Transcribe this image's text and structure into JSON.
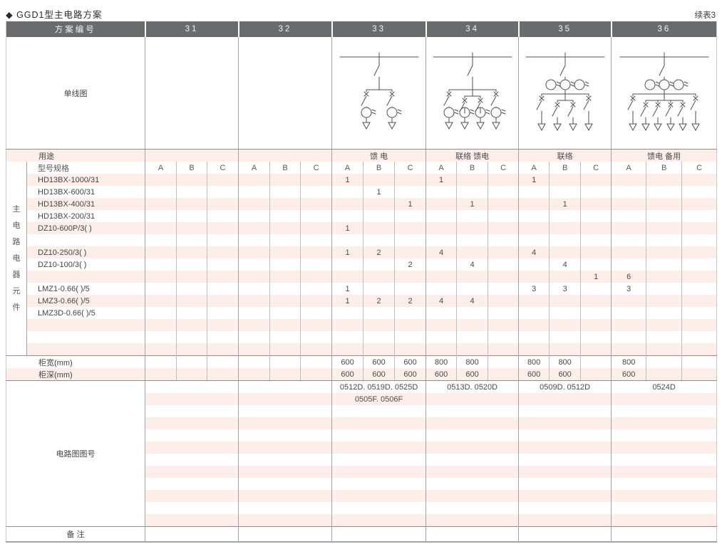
{
  "page": {
    "title": "◆ GGD1型主电路方案",
    "continued_label": "续表3"
  },
  "table": {
    "header": {
      "label": "方案编号",
      "schemes": [
        "31",
        "32",
        "33",
        "34",
        "35",
        "36"
      ]
    },
    "diagram_row": {
      "label": "单线图"
    },
    "usage_row": {
      "label": "用途",
      "values": [
        "",
        "",
        "馈 电",
        "联络 馈电",
        "联络",
        "馈电 备用"
      ]
    },
    "spec_row": {
      "label": "型号规格",
      "side_label": "主电路电器元件",
      "subcols": [
        "A",
        "B",
        "C"
      ]
    },
    "components": [
      {
        "name": "HD13BX-1000/31",
        "values": [
          "",
          "",
          "",
          "",
          "",
          "",
          "1",
          "",
          "",
          "1",
          "",
          "",
          "1",
          "",
          "",
          "",
          "",
          ""
        ]
      },
      {
        "name": "HD13BX-600/31",
        "values": [
          "",
          "",
          "",
          "",
          "",
          "",
          "",
          "1",
          "",
          "",
          "",
          "",
          "",
          "",
          "",
          "",
          "",
          ""
        ]
      },
      {
        "name": "HD13BX-400/31",
        "values": [
          "",
          "",
          "",
          "",
          "",
          "",
          "",
          "",
          "1",
          "",
          "1",
          "",
          "",
          "1",
          "",
          "",
          "",
          ""
        ]
      },
      {
        "name": "HD13BX-200/31",
        "values": [
          "",
          "",
          "",
          "",
          "",
          "",
          "",
          "",
          "",
          "",
          "",
          "",
          "",
          "",
          "",
          "",
          "",
          ""
        ]
      },
      {
        "name": "DZ10-600P/3( )",
        "values": [
          "",
          "",
          "",
          "",
          "",
          "",
          "1",
          "",
          "",
          "",
          "",
          "",
          "",
          "",
          "",
          "",
          "",
          ""
        ]
      },
      {
        "name": "",
        "values": [
          "",
          "",
          "",
          "",
          "",
          "",
          "",
          "",
          "",
          "",
          "",
          "",
          "",
          "",
          "",
          "",
          "",
          ""
        ]
      },
      {
        "name": "DZ10-250/3( )",
        "values": [
          "",
          "",
          "",
          "",
          "",
          "",
          "1",
          "2",
          "",
          "4",
          "",
          "",
          "4",
          "",
          "",
          "",
          "",
          ""
        ]
      },
      {
        "name": "DZ10-100/3( )",
        "values": [
          "",
          "",
          "",
          "",
          "",
          "",
          "",
          "",
          "2",
          "",
          "4",
          "",
          "",
          "4",
          "",
          "",
          "",
          ""
        ]
      },
      {
        "name": "",
        "values": [
          "",
          "",
          "",
          "",
          "",
          "",
          "",
          "",
          "",
          "",
          "",
          "",
          "",
          "",
          "1",
          "6",
          "",
          ""
        ]
      },
      {
        "name": "LMZ1-0.66( )/5",
        "values": [
          "",
          "",
          "",
          "",
          "",
          "",
          "1",
          "",
          "",
          "",
          "",
          "",
          "3",
          "3",
          "",
          "3",
          "",
          ""
        ]
      },
      {
        "name": "LMZ3-0.66( )/5",
        "values": [
          "",
          "",
          "",
          "",
          "",
          "",
          "1",
          "2",
          "2",
          "4",
          "4",
          "",
          "",
          "",
          "",
          "",
          "",
          ""
        ]
      },
      {
        "name": "LMZ3D-0.66( )/5",
        "values": [
          "",
          "",
          "",
          "",
          "",
          "",
          "",
          "",
          "",
          "",
          "",
          "",
          "",
          "",
          "",
          "",
          "",
          ""
        ]
      },
      {
        "name": "",
        "values": [
          "",
          "",
          "",
          "",
          "",
          "",
          "",
          "",
          "",
          "",
          "",
          "",
          "",
          "",
          "",
          "",
          "",
          ""
        ]
      },
      {
        "name": "",
        "values": [
          "",
          "",
          "",
          "",
          "",
          "",
          "",
          "",
          "",
          "",
          "",
          "",
          "",
          "",
          "",
          "",
          "",
          ""
        ]
      },
      {
        "name": "",
        "values": [
          "",
          "",
          "",
          "",
          "",
          "",
          "",
          "",
          "",
          "",
          "",
          "",
          "",
          "",
          "",
          "",
          "",
          ""
        ]
      }
    ],
    "width_row": {
      "label": "柜宽(mm)",
      "values": [
        "",
        "",
        "",
        "",
        "",
        "",
        "600",
        "600",
        "600",
        "800",
        "800",
        "",
        "800",
        "800",
        "",
        "800",
        "",
        ""
      ]
    },
    "depth_row": {
      "label": "柜深(mm)",
      "values": [
        "",
        "",
        "",
        "",
        "",
        "",
        "600",
        "600",
        "600",
        "600",
        "600",
        "",
        "600",
        "600",
        "",
        "600",
        "",
        ""
      ]
    },
    "drawing_section": {
      "label": "电路图图号",
      "rows": [
        [
          "",
          "",
          "0512D. 0519D. 0525D",
          "0513D. 0520D",
          "0509D. 0512D",
          "0524D"
        ],
        [
          "",
          "",
          "0505F. 0506F",
          "",
          "",
          ""
        ],
        [
          "",
          "",
          "",
          "",
          "",
          ""
        ],
        [
          "",
          "",
          "",
          "",
          "",
          ""
        ],
        [
          "",
          "",
          "",
          "",
          "",
          ""
        ],
        [
          "",
          "",
          "",
          "",
          "",
          ""
        ],
        [
          "",
          "",
          "",
          "",
          "",
          ""
        ],
        [
          "",
          "",
          "",
          "",
          "",
          ""
        ],
        [
          "",
          "",
          "",
          "",
          "",
          ""
        ],
        [
          "",
          "",
          "",
          "",
          "",
          ""
        ],
        [
          "",
          "",
          "",
          "",
          "",
          ""
        ],
        [
          "",
          "",
          "",
          "",
          "",
          ""
        ]
      ]
    },
    "remark_row": {
      "label": "备 注",
      "values": [
        "",
        "",
        "",
        "",
        "",
        ""
      ]
    }
  },
  "diagrams": [
    null,
    null,
    {
      "scheme": "33",
      "branches": 2,
      "main_cts": 0,
      "branch_cts": true
    },
    {
      "scheme": "34",
      "branches": 4,
      "main_cts": 0,
      "branch_cts": true
    },
    {
      "scheme": "35",
      "branches": 4,
      "main_cts": 3,
      "branch_cts": false
    },
    {
      "scheme": "36",
      "branches": 6,
      "main_cts": 3,
      "branch_cts": false
    }
  ],
  "colors": {
    "header_bg": "#6a6b6d",
    "stripe_pink": "#fdeeea",
    "line_gray": "#a2a2a2",
    "diagram_stroke": "#4f4f4f"
  }
}
